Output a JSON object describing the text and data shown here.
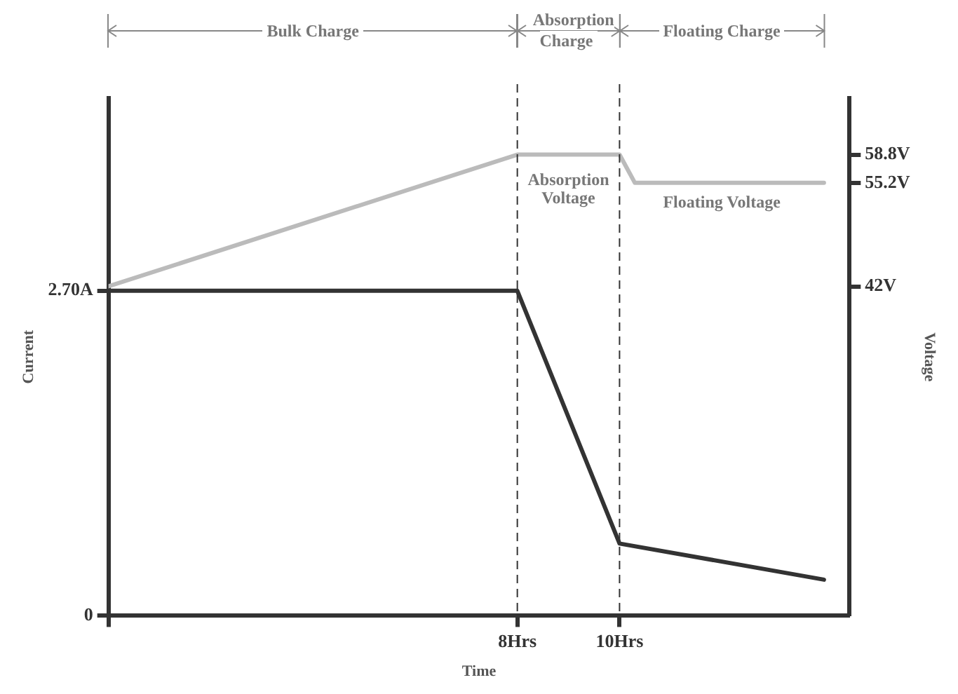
{
  "chart_data": {
    "type": "line",
    "xlabel": "Time",
    "ylabel": "Current",
    "y2label": "Voltage",
    "xlim": [
      0,
      14.5
    ],
    "xticks": [
      {
        "value": 0,
        "label": null
      },
      {
        "value": 8,
        "label": "8Hrs"
      },
      {
        "value": 10,
        "label": "10Hrs"
      }
    ],
    "ylim": [
      0,
      4.3
    ],
    "yticks": [
      {
        "value": 0,
        "label": "0"
      },
      {
        "value": 2.7,
        "label": "2.70A"
      }
    ],
    "y2lim": [
      0,
      66
    ],
    "y2ticks": [
      {
        "value": 42,
        "label": "42V"
      },
      {
        "value": 55.2,
        "label": "55.2V"
      },
      {
        "value": 58.8,
        "label": "58.8V"
      }
    ],
    "series": [
      {
        "color": "#bbbbbb",
        "axis": "y2",
        "x": [
          0,
          8,
          10,
          10.3,
          14
        ],
        "values": [
          42,
          58.8,
          58.8,
          55.2,
          55.2
        ]
      },
      {
        "color": "#333333",
        "x": [
          0,
          8,
          10,
          14
        ],
        "values": [
          2.7,
          2.7,
          0.6,
          0.3
        ]
      }
    ],
    "ref_lines": [
      {
        "axis": "x",
        "value": 8,
        "line_style": "dashed",
        "color": "#333333"
      },
      {
        "axis": "x",
        "value": 10,
        "line_style": "dashed",
        "color": "#333333"
      }
    ],
    "annotations": [
      "Bulk Charge",
      "Absorption Charge",
      "Floating Charge",
      "Absorption Voltage",
      "Floating Voltage"
    ],
    "grid": false,
    "legend": false,
    "marker": "none",
    "line_style": "solid"
  }
}
